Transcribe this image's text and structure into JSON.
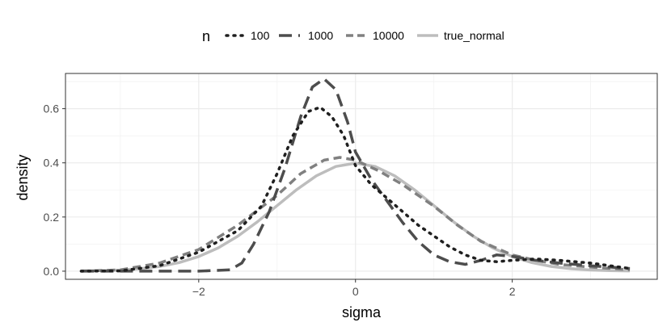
{
  "chart_data": {
    "type": "line",
    "xlabel": "sigma",
    "ylabel": "density",
    "xlim": [
      -3.7,
      3.85
    ],
    "ylim": [
      -0.03,
      0.73
    ],
    "x_ticks": [
      -2,
      0,
      2
    ],
    "x_tick_labels": [
      "−2",
      "0",
      "2"
    ],
    "y_ticks": [
      0.0,
      0.2,
      0.4,
      0.6
    ],
    "y_tick_labels": [
      "0.0",
      "0.2",
      "0.4",
      "0.6"
    ],
    "grid": true,
    "legend": {
      "title": "n",
      "position": "top"
    },
    "series": [
      {
        "name": "100",
        "color": "#1f1f1f",
        "dash": "dotted",
        "points": [
          [
            -3.5,
            0.0
          ],
          [
            -3.0,
            0.001
          ],
          [
            -2.5,
            0.02
          ],
          [
            -2.0,
            0.07
          ],
          [
            -1.5,
            0.15
          ],
          [
            -1.2,
            0.24
          ],
          [
            -1.0,
            0.36
          ],
          [
            -0.8,
            0.5
          ],
          [
            -0.6,
            0.59
          ],
          [
            -0.45,
            0.605
          ],
          [
            -0.3,
            0.57
          ],
          [
            -0.15,
            0.5
          ],
          [
            0.0,
            0.39
          ],
          [
            0.2,
            0.32
          ],
          [
            0.4,
            0.27
          ],
          [
            0.6,
            0.22
          ],
          [
            0.8,
            0.17
          ],
          [
            1.0,
            0.13
          ],
          [
            1.2,
            0.09
          ],
          [
            1.4,
            0.06
          ],
          [
            1.6,
            0.04
          ],
          [
            1.8,
            0.035
          ],
          [
            2.0,
            0.04
          ],
          [
            2.3,
            0.045
          ],
          [
            2.6,
            0.04
          ],
          [
            3.0,
            0.03
          ],
          [
            3.5,
            0.01
          ]
        ]
      },
      {
        "name": "1000",
        "color": "#4d4d4d",
        "dash": "longdash",
        "points": [
          [
            -3.5,
            0.0
          ],
          [
            -2.0,
            0.0
          ],
          [
            -1.6,
            0.005
          ],
          [
            -1.45,
            0.03
          ],
          [
            -1.3,
            0.1
          ],
          [
            -1.1,
            0.22
          ],
          [
            -0.9,
            0.38
          ],
          [
            -0.7,
            0.57
          ],
          [
            -0.55,
            0.68
          ],
          [
            -0.4,
            0.71
          ],
          [
            -0.25,
            0.67
          ],
          [
            -0.1,
            0.55
          ],
          [
            0.0,
            0.44
          ],
          [
            0.2,
            0.34
          ],
          [
            0.4,
            0.26
          ],
          [
            0.6,
            0.18
          ],
          [
            0.8,
            0.11
          ],
          [
            1.0,
            0.06
          ],
          [
            1.2,
            0.035
          ],
          [
            1.4,
            0.025
          ],
          [
            1.6,
            0.04
          ],
          [
            1.8,
            0.06
          ],
          [
            2.0,
            0.055
          ],
          [
            2.3,
            0.04
          ],
          [
            2.6,
            0.03
          ],
          [
            3.0,
            0.02
          ],
          [
            3.5,
            0.01
          ]
        ]
      },
      {
        "name": "10000",
        "color": "#808080",
        "dash": "dashed",
        "points": [
          [
            -3.5,
            0.0
          ],
          [
            -3.0,
            0.005
          ],
          [
            -2.5,
            0.03
          ],
          [
            -2.0,
            0.08
          ],
          [
            -1.5,
            0.17
          ],
          [
            -1.0,
            0.28
          ],
          [
            -0.7,
            0.36
          ],
          [
            -0.4,
            0.41
          ],
          [
            -0.2,
            0.42
          ],
          [
            0.0,
            0.41
          ],
          [
            0.3,
            0.37
          ],
          [
            0.6,
            0.32
          ],
          [
            1.0,
            0.24
          ],
          [
            1.3,
            0.17
          ],
          [
            1.6,
            0.11
          ],
          [
            2.0,
            0.06
          ],
          [
            2.3,
            0.04
          ],
          [
            2.6,
            0.025
          ],
          [
            3.0,
            0.015
          ],
          [
            3.5,
            0.005
          ]
        ]
      },
      {
        "name": "true_normal",
        "color": "#bdbdbd",
        "dash": "solid",
        "points": [
          [
            -3.5,
            0.0009
          ],
          [
            -3.25,
            0.002
          ],
          [
            -3.0,
            0.0044
          ],
          [
            -2.75,
            0.0091
          ],
          [
            -2.5,
            0.0175
          ],
          [
            -2.25,
            0.0317
          ],
          [
            -2.0,
            0.054
          ],
          [
            -1.75,
            0.0863
          ],
          [
            -1.5,
            0.1295
          ],
          [
            -1.25,
            0.1826
          ],
          [
            -1.0,
            0.242
          ],
          [
            -0.75,
            0.3011
          ],
          [
            -0.5,
            0.3521
          ],
          [
            -0.25,
            0.3867
          ],
          [
            0.0,
            0.3989
          ],
          [
            0.25,
            0.3867
          ],
          [
            0.5,
            0.3521
          ],
          [
            0.75,
            0.3011
          ],
          [
            1.0,
            0.242
          ],
          [
            1.25,
            0.1826
          ],
          [
            1.5,
            0.1295
          ],
          [
            1.75,
            0.0863
          ],
          [
            2.0,
            0.054
          ],
          [
            2.25,
            0.0317
          ],
          [
            2.5,
            0.0175
          ],
          [
            2.75,
            0.0091
          ],
          [
            3.0,
            0.0044
          ],
          [
            3.25,
            0.002
          ],
          [
            3.5,
            0.0009
          ]
        ]
      }
    ]
  }
}
